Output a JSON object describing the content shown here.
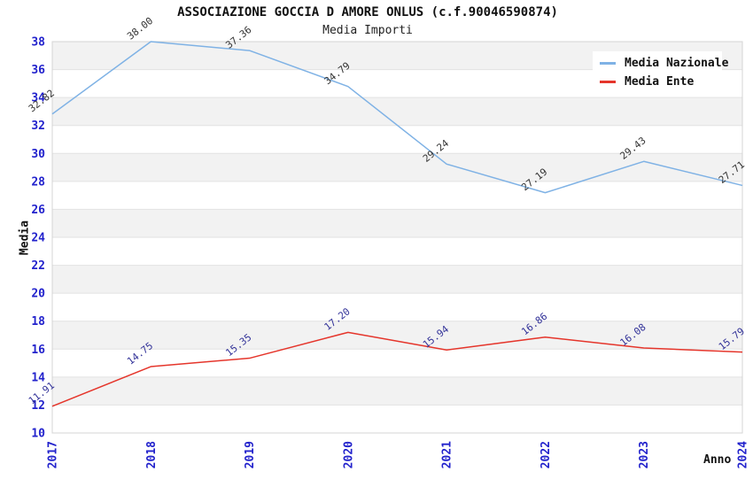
{
  "header": {
    "title": "ASSOCIAZIONE GOCCIA D AMORE ONLUS (c.f.90046590874)",
    "subtitle": "Media Importi"
  },
  "axes": {
    "y_title": "Media",
    "x_title": "Anno"
  },
  "legend": {
    "items": [
      {
        "label": "Media Nazionale",
        "color": "#7fb2e5"
      },
      {
        "label": "Media Ente",
        "color": "#e5352b"
      }
    ]
  },
  "chart_data": {
    "type": "line",
    "title": "ASSOCIAZIONE GOCCIA D AMORE ONLUS (c.f.90046590874)",
    "subtitle": "Media Importi",
    "xlabel": "Anno",
    "ylabel": "Media",
    "categories": [
      "2017",
      "2018",
      "2019",
      "2020",
      "2021",
      "2022",
      "2023",
      "2024"
    ],
    "series": [
      {
        "name": "Media Nazionale",
        "color": "#7fb2e5",
        "label_color": "#333333",
        "values": [
          32.82,
          38.0,
          37.36,
          34.79,
          29.24,
          27.19,
          29.43,
          27.71
        ]
      },
      {
        "name": "Media Ente",
        "color": "#e5352b",
        "label_color": "#333399",
        "values": [
          11.91,
          14.75,
          15.35,
          17.2,
          15.94,
          16.86,
          16.08,
          15.79
        ]
      }
    ],
    "ylim": [
      10,
      38
    ],
    "ytick_step": 2,
    "y_ticks": [
      10,
      12,
      14,
      16,
      18,
      20,
      22,
      24,
      26,
      28,
      30,
      32,
      34,
      36,
      38
    ],
    "grid": "horizontal-bands",
    "band_color": "#f2f2f2",
    "gridline_color": "#e2e2e2",
    "border_color": "#d4d4d4",
    "axis_tick_color": "#2222cc",
    "legend_position": "top-right",
    "data_labels": true
  }
}
